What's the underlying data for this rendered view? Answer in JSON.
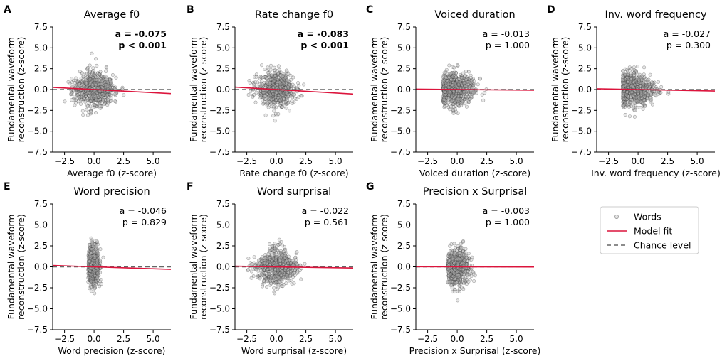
{
  "chart_data": {
    "type": "scatter",
    "x_range": [
      -3.5,
      6.5
    ],
    "y_range": [
      -7.5,
      7.5
    ],
    "x_ticks": [
      -2.5,
      0.0,
      2.5,
      5.0
    ],
    "x_tick_labels": [
      "−2.5",
      "0.0",
      "2.5",
      "5.0"
    ],
    "y_ticks": [
      -7.5,
      -5.0,
      -2.5,
      0.0,
      2.5,
      5.0,
      7.5
    ],
    "y_tick_labels": [
      "−7.5",
      "−5.0",
      "−2.5",
      "0.0",
      "2.5",
      "5.0",
      "7.5"
    ],
    "ylabel_line1": "Fundamental waveform",
    "ylabel_line2": "reconstruction (z-score)",
    "chance_level": 0.0,
    "panels": [
      {
        "letter": "A",
        "title": "Average f0",
        "xlabel": "Average f0 (z-score)",
        "a_text": "a = -0.075",
        "p_text": "p < 0.001",
        "bold": true,
        "slope": -0.075,
        "intercept": 0.0,
        "x_min": -2.6,
        "x_max": 3.8,
        "x_mean": 0.0,
        "x_sd": 0.9
      },
      {
        "letter": "B",
        "title": "Rate change f0",
        "xlabel": "Rate change f0 (z-score)",
        "a_text": "a = -0.083",
        "p_text": "p < 0.001",
        "bold": true,
        "slope": -0.083,
        "intercept": 0.0,
        "x_min": -2.4,
        "x_max": 3.2,
        "x_mean": 0.0,
        "x_sd": 0.8
      },
      {
        "letter": "C",
        "title": "Voiced duration",
        "xlabel": "Voiced duration (z-score)",
        "a_text": "a = -0.013",
        "p_text": "p = 1.000",
        "bold": false,
        "slope": -0.013,
        "intercept": 0.0,
        "x_min": -1.2,
        "x_max": 3.5,
        "x_mean": -0.2,
        "x_sd": 0.85
      },
      {
        "letter": "D",
        "title": "Inv. word frequency",
        "xlabel": "Inv. word frequency (z-score)",
        "a_text": "a = -0.027",
        "p_text": "p = 0.300",
        "bold": false,
        "slope": -0.027,
        "intercept": 0.0,
        "x_min": -1.3,
        "x_max": 4.0,
        "x_mean": -0.4,
        "x_sd": 0.9
      },
      {
        "letter": "E",
        "title": "Word precision",
        "xlabel": "Word precision (z-score)",
        "a_text": "a = -0.046",
        "p_text": "p = 0.829",
        "bold": false,
        "slope": -0.046,
        "intercept": 0.0,
        "x_min": -0.5,
        "x_max": 2.5,
        "x_mean": -0.05,
        "x_sd": 0.25
      },
      {
        "letter": "F",
        "title": "Word surprisal",
        "xlabel": "Word surprisal (z-score)",
        "a_text": "a = -0.022",
        "p_text": "p = 0.561",
        "bold": false,
        "slope": -0.022,
        "intercept": 0.0,
        "x_min": -2.5,
        "x_max": 3.2,
        "x_mean": 0.0,
        "x_sd": 0.9
      },
      {
        "letter": "G",
        "title": "Precision x Surprisal",
        "xlabel": "Precision x Surprisal (z-score)",
        "a_text": "a = -0.003",
        "p_text": "p = 1.000",
        "bold": false,
        "slope": -0.003,
        "intercept": 0.0,
        "x_min": -0.8,
        "x_max": 2.3,
        "x_mean": 0.0,
        "x_sd": 0.5
      }
    ],
    "legend": [
      {
        "kind": "marker",
        "label": "Words"
      },
      {
        "kind": "line",
        "label": "Model fit"
      },
      {
        "kind": "dashed",
        "label": "Chance level"
      }
    ]
  },
  "colors": {
    "points_edge": "#333333",
    "points_fill": "#bbbbbb",
    "fit_line": "#dc143c",
    "chance_line": "#666666"
  }
}
